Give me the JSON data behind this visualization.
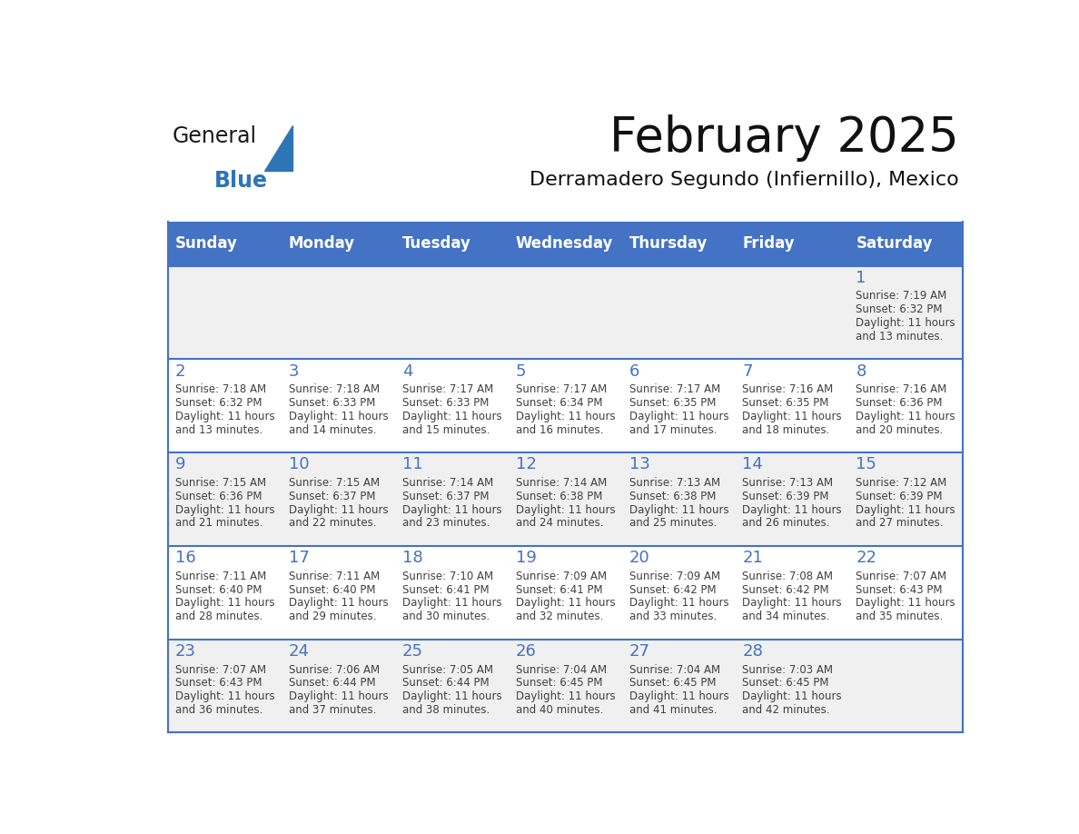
{
  "title": "February 2025",
  "subtitle": "Derramadero Segundo (Infiernillo), Mexico",
  "header_color": "#4472C4",
  "header_text_color": "#FFFFFF",
  "header_days": [
    "Sunday",
    "Monday",
    "Tuesday",
    "Wednesday",
    "Thursday",
    "Friday",
    "Saturday"
  ],
  "cell_bg_white": "#FFFFFF",
  "cell_bg_gray": "#F0F0F0",
  "border_color": "#4472C4",
  "day_number_color": "#4472C4",
  "text_color": "#404040",
  "logo_general_color": "#1A1A1A",
  "logo_blue_color": "#2E75B6",
  "calendar_data": [
    [
      null,
      null,
      null,
      null,
      null,
      null,
      {
        "day": 1,
        "sunrise": "7:19 AM",
        "sunset": "6:32 PM",
        "daylight_line1": "Daylight: 11 hours",
        "daylight_line2": "and 13 minutes."
      }
    ],
    [
      {
        "day": 2,
        "sunrise": "7:18 AM",
        "sunset": "6:32 PM",
        "daylight_line1": "Daylight: 11 hours",
        "daylight_line2": "and 13 minutes."
      },
      {
        "day": 3,
        "sunrise": "7:18 AM",
        "sunset": "6:33 PM",
        "daylight_line1": "Daylight: 11 hours",
        "daylight_line2": "and 14 minutes."
      },
      {
        "day": 4,
        "sunrise": "7:17 AM",
        "sunset": "6:33 PM",
        "daylight_line1": "Daylight: 11 hours",
        "daylight_line2": "and 15 minutes."
      },
      {
        "day": 5,
        "sunrise": "7:17 AM",
        "sunset": "6:34 PM",
        "daylight_line1": "Daylight: 11 hours",
        "daylight_line2": "and 16 minutes."
      },
      {
        "day": 6,
        "sunrise": "7:17 AM",
        "sunset": "6:35 PM",
        "daylight_line1": "Daylight: 11 hours",
        "daylight_line2": "and 17 minutes."
      },
      {
        "day": 7,
        "sunrise": "7:16 AM",
        "sunset": "6:35 PM",
        "daylight_line1": "Daylight: 11 hours",
        "daylight_line2": "and 18 minutes."
      },
      {
        "day": 8,
        "sunrise": "7:16 AM",
        "sunset": "6:36 PM",
        "daylight_line1": "Daylight: 11 hours",
        "daylight_line2": "and 20 minutes."
      }
    ],
    [
      {
        "day": 9,
        "sunrise": "7:15 AM",
        "sunset": "6:36 PM",
        "daylight_line1": "Daylight: 11 hours",
        "daylight_line2": "and 21 minutes."
      },
      {
        "day": 10,
        "sunrise": "7:15 AM",
        "sunset": "6:37 PM",
        "daylight_line1": "Daylight: 11 hours",
        "daylight_line2": "and 22 minutes."
      },
      {
        "day": 11,
        "sunrise": "7:14 AM",
        "sunset": "6:37 PM",
        "daylight_line1": "Daylight: 11 hours",
        "daylight_line2": "and 23 minutes."
      },
      {
        "day": 12,
        "sunrise": "7:14 AM",
        "sunset": "6:38 PM",
        "daylight_line1": "Daylight: 11 hours",
        "daylight_line2": "and 24 minutes."
      },
      {
        "day": 13,
        "sunrise": "7:13 AM",
        "sunset": "6:38 PM",
        "daylight_line1": "Daylight: 11 hours",
        "daylight_line2": "and 25 minutes."
      },
      {
        "day": 14,
        "sunrise": "7:13 AM",
        "sunset": "6:39 PM",
        "daylight_line1": "Daylight: 11 hours",
        "daylight_line2": "and 26 minutes."
      },
      {
        "day": 15,
        "sunrise": "7:12 AM",
        "sunset": "6:39 PM",
        "daylight_line1": "Daylight: 11 hours",
        "daylight_line2": "and 27 minutes."
      }
    ],
    [
      {
        "day": 16,
        "sunrise": "7:11 AM",
        "sunset": "6:40 PM",
        "daylight_line1": "Daylight: 11 hours",
        "daylight_line2": "and 28 minutes."
      },
      {
        "day": 17,
        "sunrise": "7:11 AM",
        "sunset": "6:40 PM",
        "daylight_line1": "Daylight: 11 hours",
        "daylight_line2": "and 29 minutes."
      },
      {
        "day": 18,
        "sunrise": "7:10 AM",
        "sunset": "6:41 PM",
        "daylight_line1": "Daylight: 11 hours",
        "daylight_line2": "and 30 minutes."
      },
      {
        "day": 19,
        "sunrise": "7:09 AM",
        "sunset": "6:41 PM",
        "daylight_line1": "Daylight: 11 hours",
        "daylight_line2": "and 32 minutes."
      },
      {
        "day": 20,
        "sunrise": "7:09 AM",
        "sunset": "6:42 PM",
        "daylight_line1": "Daylight: 11 hours",
        "daylight_line2": "and 33 minutes."
      },
      {
        "day": 21,
        "sunrise": "7:08 AM",
        "sunset": "6:42 PM",
        "daylight_line1": "Daylight: 11 hours",
        "daylight_line2": "and 34 minutes."
      },
      {
        "day": 22,
        "sunrise": "7:07 AM",
        "sunset": "6:43 PM",
        "daylight_line1": "Daylight: 11 hours",
        "daylight_line2": "and 35 minutes."
      }
    ],
    [
      {
        "day": 23,
        "sunrise": "7:07 AM",
        "sunset": "6:43 PM",
        "daylight_line1": "Daylight: 11 hours",
        "daylight_line2": "and 36 minutes."
      },
      {
        "day": 24,
        "sunrise": "7:06 AM",
        "sunset": "6:44 PM",
        "daylight_line1": "Daylight: 11 hours",
        "daylight_line2": "and 37 minutes."
      },
      {
        "day": 25,
        "sunrise": "7:05 AM",
        "sunset": "6:44 PM",
        "daylight_line1": "Daylight: 11 hours",
        "daylight_line2": "and 38 minutes."
      },
      {
        "day": 26,
        "sunrise": "7:04 AM",
        "sunset": "6:45 PM",
        "daylight_line1": "Daylight: 11 hours",
        "daylight_line2": "and 40 minutes."
      },
      {
        "day": 27,
        "sunrise": "7:04 AM",
        "sunset": "6:45 PM",
        "daylight_line1": "Daylight: 11 hours",
        "daylight_line2": "and 41 minutes."
      },
      {
        "day": 28,
        "sunrise": "7:03 AM",
        "sunset": "6:45 PM",
        "daylight_line1": "Daylight: 11 hours",
        "daylight_line2": "and 42 minutes."
      },
      null
    ]
  ]
}
